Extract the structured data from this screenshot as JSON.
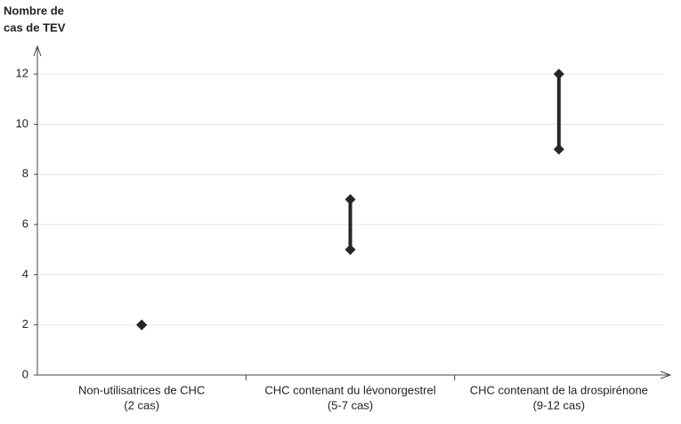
{
  "chart_data": {
    "type": "range",
    "y_label": [
      "Nombre de",
      "cas de TEV"
    ],
    "categories": [
      [
        "Non-utilisatrices de CHC",
        "(2 cas)"
      ],
      [
        "CHC contenant du lévonorgestrel",
        "(5-7 cas)"
      ],
      [
        "CHC contenant de la drospirénone",
        "(9-12 cas)"
      ]
    ],
    "low": [
      2,
      5,
      9
    ],
    "high": [
      2,
      7,
      12
    ],
    "color": "#262626",
    "ylim": [
      0,
      13
    ],
    "yticks": [
      0,
      2,
      4,
      6,
      8,
      10,
      12
    ],
    "grid": true
  }
}
